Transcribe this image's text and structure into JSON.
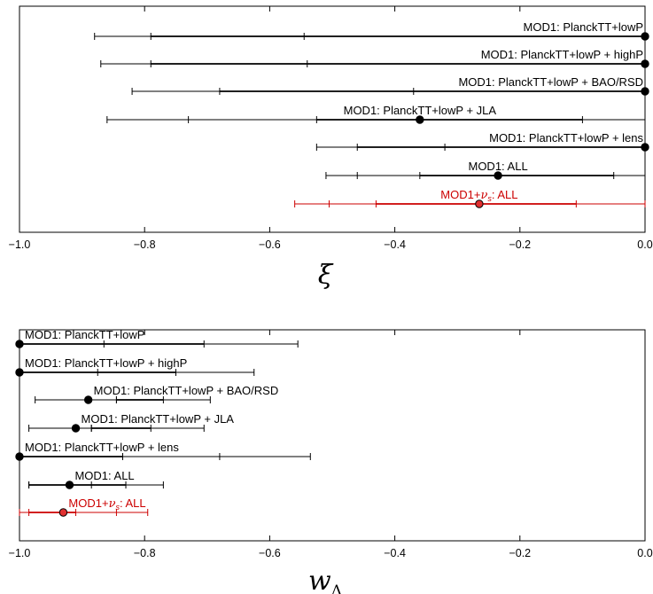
{
  "chart_data": [
    {
      "type": "errorbar",
      "xlabel": "ξ",
      "xlim": [
        -1.0,
        0.0
      ],
      "x_ticks": [
        -1.0,
        -0.8,
        -0.6,
        -0.4,
        -0.2,
        0.0
      ],
      "x_tick_labels": [
        "−1.0",
        "−0.8",
        "−0.6",
        "−0.4",
        "−0.2",
        "0.0"
      ],
      "rows": [
        {
          "label": "MOD1: PlanckTT+lowP",
          "color": "#000000",
          "center": 0.0,
          "inner": [
            -0.79,
            0.0
          ],
          "outer": [
            -0.88,
            0.0
          ],
          "mid_tick": -0.545
        },
        {
          "label": "MOD1: PlanckTT+lowP + highP",
          "color": "#000000",
          "center": 0.0,
          "inner": [
            -0.79,
            0.0
          ],
          "outer": [
            -0.87,
            0.0
          ],
          "mid_tick": -0.54
        },
        {
          "label": "MOD1: PlanckTT+lowP + BAO/RSD",
          "color": "#000000",
          "center": 0.0,
          "inner": [
            -0.68,
            0.0
          ],
          "outer": [
            -0.82,
            0.0
          ],
          "mid_tick": -0.37
        },
        {
          "label": "MOD1: PlanckTT+lowP + JLA",
          "color": "#000000",
          "center": -0.36,
          "inner": [
            -0.525,
            -0.1
          ],
          "outer": [
            -0.86,
            0.0
          ],
          "mid_tick": -0.73
        },
        {
          "label": "MOD1: PlanckTT+lowP + lens",
          "color": "#000000",
          "center": 0.0,
          "inner": [
            -0.46,
            0.0
          ],
          "outer": [
            -0.525,
            0.0
          ],
          "mid_tick": -0.32
        },
        {
          "label": "MOD1: ALL",
          "color": "#000000",
          "center": -0.235,
          "inner": [
            -0.36,
            -0.05
          ],
          "outer": [
            -0.51,
            0.0
          ],
          "mid_tick": -0.46
        },
        {
          "label": "MOD1+ν_s: ALL",
          "label_base": "MOD1+",
          "label_sub_symbol": "ν",
          "label_sub": "s",
          "label_tail": ": ALL",
          "color": "#cc0000",
          "center": -0.265,
          "inner": [
            -0.43,
            -0.11
          ],
          "outer": [
            -0.56,
            0.0
          ],
          "mid_tick": -0.505
        }
      ]
    },
    {
      "type": "errorbar",
      "xlabel": "w",
      "xlabel_sub": "Λ",
      "xlim": [
        -1.0,
        0.0
      ],
      "x_ticks": [
        -1.0,
        -0.8,
        -0.6,
        -0.4,
        -0.2,
        0.0
      ],
      "x_tick_labels": [
        "−1.0",
        "−0.8",
        "−0.6",
        "−0.4",
        "−0.2",
        "0.0"
      ],
      "rows": [
        {
          "label": "MOD1: PlanckTT+lowP",
          "color": "#000000",
          "center": -1.0,
          "inner": [
            -1.0,
            -0.705
          ],
          "outer": [
            -1.0,
            -0.555
          ],
          "mid_tick": -0.865
        },
        {
          "label": "MOD1: PlanckTT+lowP + highP",
          "color": "#000000",
          "center": -1.0,
          "inner": [
            -1.0,
            -0.75
          ],
          "outer": [
            -1.0,
            -0.625
          ],
          "mid_tick": -0.875
        },
        {
          "label": "MOD1: PlanckTT+lowP + BAO/RSD",
          "color": "#000000",
          "center": -0.89,
          "inner": [
            -0.845,
            -0.77
          ],
          "outer": [
            -0.975,
            -0.695
          ],
          "mid_tick": -0.845
        },
        {
          "label": "MOD1: PlanckTT+lowP + JLA",
          "color": "#000000",
          "center": -0.91,
          "inner": [
            -0.885,
            -0.79
          ],
          "outer": [
            -0.985,
            -0.705
          ],
          "mid_tick": -0.885
        },
        {
          "label": "MOD1: PlanckTT+lowP + lens",
          "color": "#000000",
          "center": -1.0,
          "inner": [
            -1.0,
            -0.835
          ],
          "outer": [
            -1.0,
            -0.535
          ],
          "mid_tick": -0.68
        },
        {
          "label": "MOD1: ALL",
          "color": "#000000",
          "center": -0.92,
          "inner": [
            -0.985,
            -0.83
          ],
          "outer": [
            -0.985,
            -0.77
          ],
          "mid_tick": -0.885
        },
        {
          "label": "MOD1+ν_s: ALL",
          "label_base": "MOD1+",
          "label_sub_symbol": "ν",
          "label_sub": "s",
          "label_tail": ": ALL",
          "color": "#cc0000",
          "center": -0.93,
          "inner": [
            -0.985,
            -0.91
          ],
          "outer": [
            -1.0,
            -0.795
          ],
          "mid_tick": -0.845
        }
      ]
    }
  ]
}
